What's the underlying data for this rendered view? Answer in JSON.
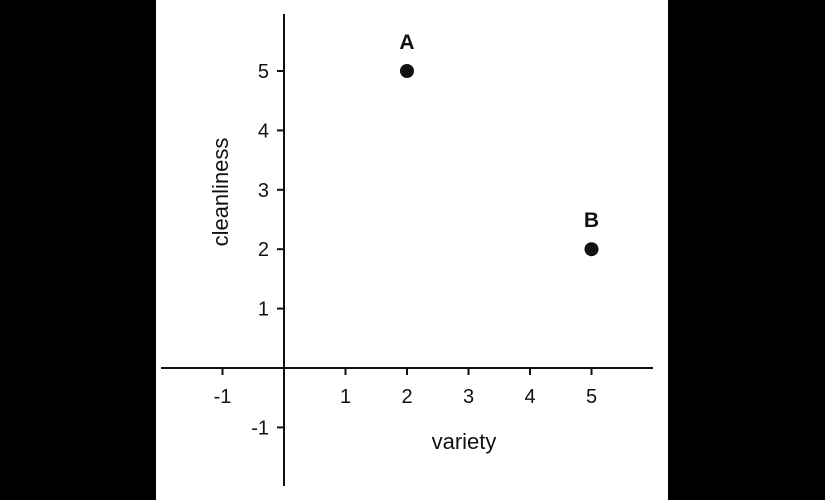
{
  "chart_data": {
    "type": "scatter",
    "title": "",
    "xlabel": "variety",
    "ylabel": "cleanliness",
    "xlim": [
      -2,
      6
    ],
    "ylim": [
      -2,
      6
    ],
    "x_ticks": [
      -1,
      1,
      2,
      3,
      4,
      5
    ],
    "y_ticks": [
      -1,
      1,
      2,
      3,
      4,
      5
    ],
    "grid": false,
    "points": [
      {
        "label": "A",
        "x": 2,
        "y": 5
      },
      {
        "label": "B",
        "x": 5,
        "y": 2
      }
    ]
  },
  "colors": {
    "page_background": "#000000",
    "plot_background": "#ffffff",
    "ink": "#111111"
  }
}
